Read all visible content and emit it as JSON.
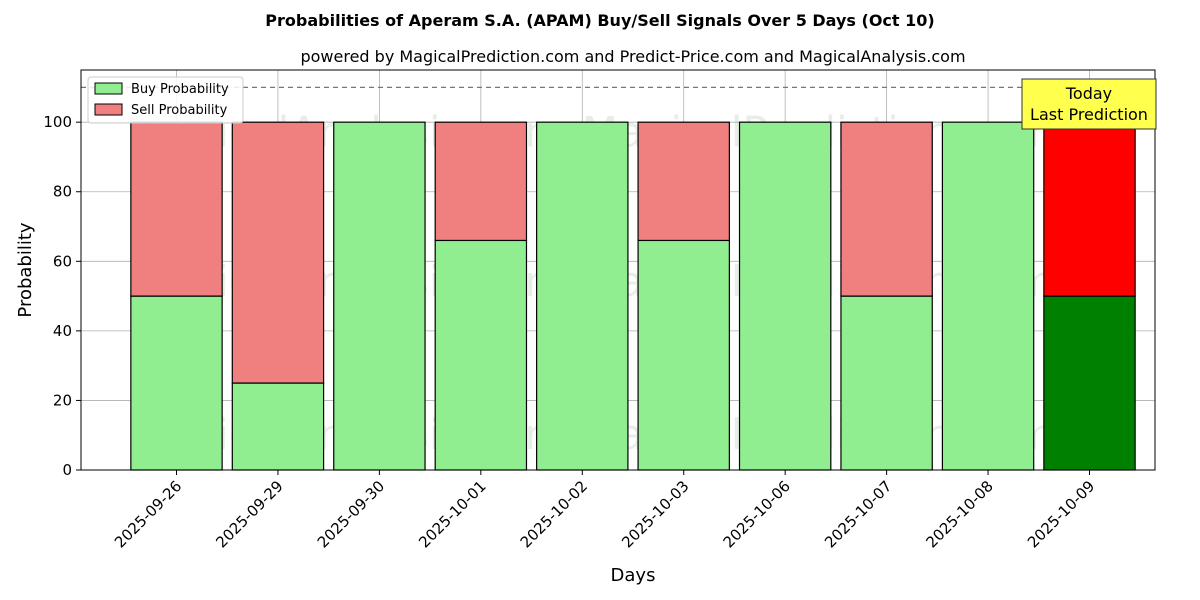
{
  "chart_data": {
    "type": "bar",
    "stacked": true,
    "title": "Probabilities of Aperam S.A. (APAM) Buy/Sell Signals Over 5 Days (Oct 10)",
    "subtitle": "powered by MagicalPrediction.com and Predict-Price.com and MagicalAnalysis.com",
    "xlabel": "Days",
    "ylabel": "Probability",
    "ylim": [
      0,
      115
    ],
    "yticks": [
      0,
      20,
      40,
      60,
      80,
      100
    ],
    "reference_line": 110,
    "grid": true,
    "legend_position": "top-left",
    "categories": [
      "2025-09-26",
      "2025-09-29",
      "2025-09-30",
      "2025-10-01",
      "2025-10-02",
      "2025-10-03",
      "2025-10-06",
      "2025-10-07",
      "2025-10-08",
      "2025-10-09"
    ],
    "series": [
      {
        "name": "Buy Probability",
        "color": "#90ee90",
        "values": [
          50,
          25,
          100,
          66,
          100,
          66,
          100,
          50,
          100,
          50
        ]
      },
      {
        "name": "Sell Probability",
        "color": "#f08080",
        "values": [
          50,
          75,
          0,
          34,
          0,
          34,
          0,
          50,
          0,
          50
        ]
      }
    ],
    "highlight": {
      "index": 9,
      "buy_color": "#008000",
      "sell_color": "#ff0000"
    },
    "annotation": {
      "line1": "Today",
      "line2": "Last Prediction",
      "background": "#ffff4d"
    },
    "watermarks": [
      "MagicalAnalysis.com",
      "MagicalPrediction.com"
    ]
  }
}
